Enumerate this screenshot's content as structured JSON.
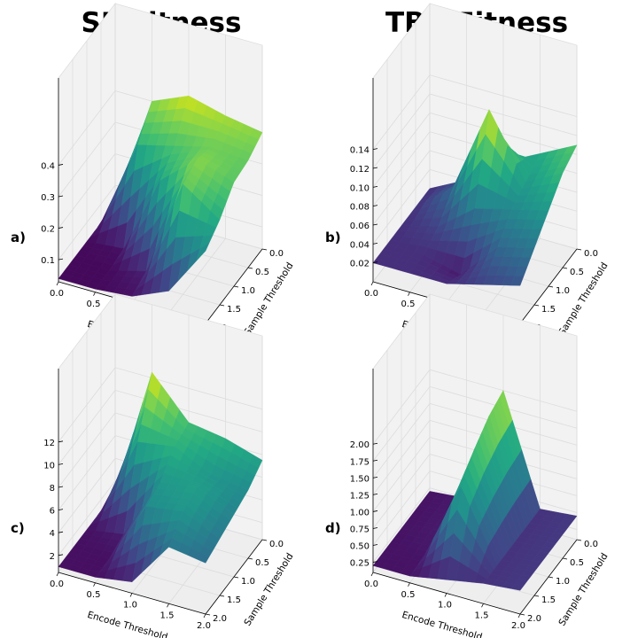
{
  "column_titles": [
    "SF Fitness",
    "TBR Fitness"
  ],
  "panel_labels": [
    "a)",
    "b)",
    "c)",
    "d)"
  ],
  "chart_data": [
    {
      "type": "surface3d",
      "panel": "a)",
      "xlabel": "Encode Threshold",
      "ylabel": "Sample Threshold",
      "x_ticks": [
        "0.0",
        "0.5",
        "1.0",
        "1.5",
        "2.0"
      ],
      "y_ticks": [
        "0.0",
        "0.5",
        "1.0",
        "1.5",
        "2.0"
      ],
      "z_ticks": [
        "0.1",
        "0.2",
        "0.3",
        "0.4"
      ],
      "zlim": [
        0.03,
        0.48
      ],
      "colormap": "viridis",
      "x": [
        0.0,
        0.5,
        1.0,
        1.5,
        2.0
      ],
      "y": [
        0.0,
        0.5,
        1.0,
        1.5,
        2.0
      ],
      "z": [
        [
          0.04,
          0.4,
          0.45,
          0.42,
          0.4
        ],
        [
          0.04,
          0.32,
          0.35,
          0.38,
          0.37
        ],
        [
          0.04,
          0.05,
          0.3,
          0.4,
          0.36
        ],
        [
          0.04,
          0.04,
          0.07,
          0.38,
          0.3
        ],
        [
          0.04,
          0.04,
          0.05,
          0.1,
          0.26
        ]
      ]
    },
    {
      "type": "surface3d",
      "panel": "b)",
      "xlabel": "Encode Threshold",
      "ylabel": "Sample Threshold",
      "x_ticks": [
        "0.0",
        "0.5",
        "1.0",
        "1.5",
        "2.0"
      ],
      "y_ticks": [
        "0.0",
        "0.5",
        "1.0",
        "1.5",
        "2.0"
      ],
      "z_ticks": [
        "0.02",
        "0.04",
        "0.06",
        "0.08",
        "0.10",
        "0.12",
        "0.14"
      ],
      "zlim": [
        0.0,
        0.15
      ],
      "colormap": "viridis",
      "x": [
        0.0,
        0.5,
        1.0,
        1.5,
        2.0
      ],
      "y": [
        0.0,
        0.5,
        1.0,
        1.5,
        2.0
      ],
      "z": [
        [
          0.02,
          0.04,
          0.07,
          0.09,
          0.11
        ],
        [
          0.02,
          0.05,
          0.145,
          0.08,
          0.1
        ],
        [
          0.02,
          0.03,
          0.06,
          0.07,
          0.08
        ],
        [
          0.02,
          0.02,
          0.01,
          0.05,
          0.06
        ],
        [
          0.02,
          0.02,
          0.02,
          0.03,
          0.04
        ]
      ]
    },
    {
      "type": "surface3d",
      "panel": "c)",
      "xlabel": "Encode Threshold",
      "ylabel": "Sample Threshold",
      "x_ticks": [
        "0.0",
        "0.5",
        "1.0",
        "1.5",
        "2.0"
      ],
      "y_ticks": [
        "0.0",
        "0.5",
        "1.0",
        "1.5",
        "2.0"
      ],
      "z_ticks": [
        "2",
        "4",
        "6",
        "8",
        "10",
        "12"
      ],
      "zlim": [
        0.5,
        13
      ],
      "colormap": "viridis",
      "x": [
        0.0,
        0.5,
        1.0,
        1.5,
        2.0
      ],
      "y": [
        0.0,
        0.5,
        1.0,
        1.5,
        2.0
      ],
      "z": [
        [
          1.0,
          12.5,
          9.0,
          8.5,
          7.5
        ],
        [
          1.0,
          8.0,
          8.5,
          7.0,
          6.5
        ],
        [
          1.0,
          1.5,
          7.0,
          7.5,
          6.0
        ],
        [
          1.0,
          1.0,
          6.5,
          7.0,
          5.5
        ],
        [
          1.0,
          1.0,
          1.5,
          5.5,
          5.0
        ]
      ]
    },
    {
      "type": "surface3d",
      "panel": "d)",
      "xlabel": "Encode Threshold",
      "ylabel": "Sample Threshold",
      "x_ticks": [
        "0.0",
        "0.5",
        "1.0",
        "1.5",
        "2.0"
      ],
      "y_ticks": [
        "0.0",
        "0.5",
        "1.0",
        "1.5",
        "2.0"
      ],
      "z_ticks": [
        "0.25",
        "0.50",
        "0.75",
        "1.00",
        "1.25",
        "1.50",
        "1.75",
        "2.00"
      ],
      "zlim": [
        0.1,
        2.2
      ],
      "colormap": "viridis",
      "x": [
        0.0,
        0.5,
        1.0,
        1.5,
        2.0
      ],
      "y": [
        0.0,
        0.5,
        1.0,
        1.5,
        2.0
      ],
      "z": [
        [
          0.2,
          0.25,
          2.0,
          0.4,
          0.45
        ],
        [
          0.2,
          0.25,
          1.9,
          0.4,
          0.45
        ],
        [
          0.2,
          0.25,
          1.7,
          0.4,
          0.45
        ],
        [
          0.2,
          0.22,
          1.4,
          0.4,
          0.45
        ],
        [
          0.2,
          0.2,
          0.3,
          0.4,
          0.45
        ]
      ]
    }
  ]
}
